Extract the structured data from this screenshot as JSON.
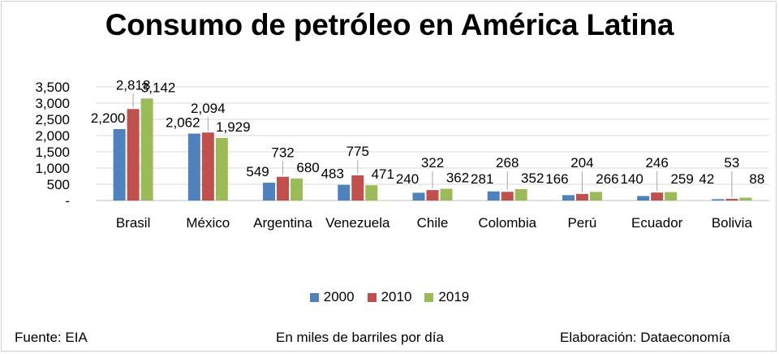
{
  "title": "Consumo de petróleo en América Latina",
  "footer": {
    "source": "Fuente: EIA",
    "units": "En miles de barriles por día",
    "credit": "Elaboración: Dataeconomía"
  },
  "chart_data": {
    "type": "bar",
    "title": "Consumo de petróleo en América Latina",
    "categories": [
      "Brasil",
      "México",
      "Argentina",
      "Venezuela",
      "Chile",
      "Colombia",
      "Perú",
      "Ecuador",
      "Bolivia"
    ],
    "series": [
      {
        "name": "2000",
        "color": "#4f81bd",
        "values": [
          2200,
          2062,
          549,
          483,
          240,
          281,
          166,
          140,
          42
        ],
        "labels": [
          "2,200",
          "2,062",
          "549",
          "483",
          "240",
          "281",
          "166",
          "140",
          "42"
        ]
      },
      {
        "name": "2010",
        "color": "#c0504d",
        "values": [
          2818,
          2094,
          732,
          775,
          322,
          268,
          204,
          246,
          53
        ],
        "labels": [
          "2,818",
          "2,094",
          "732",
          "775",
          "322",
          "268",
          "204",
          "246",
          "53"
        ]
      },
      {
        "name": "2019",
        "color": "#9bbb59",
        "values": [
          3142,
          1929,
          680,
          471,
          362,
          352,
          266,
          259,
          88
        ],
        "labels": [
          "3,142",
          "1,929",
          "680",
          "471",
          "362",
          "352",
          "266",
          "259",
          "88"
        ]
      }
    ],
    "ylim": [
      0,
      3500
    ],
    "yticks": [
      0,
      500,
      1000,
      1500,
      2000,
      2500,
      3000,
      3500
    ],
    "ytick_labels": [
      "-",
      "500",
      "1,000",
      "1,500",
      "2,000",
      "2,500",
      "3,000",
      "3,500"
    ],
    "grid": true,
    "legend": "bottom"
  }
}
